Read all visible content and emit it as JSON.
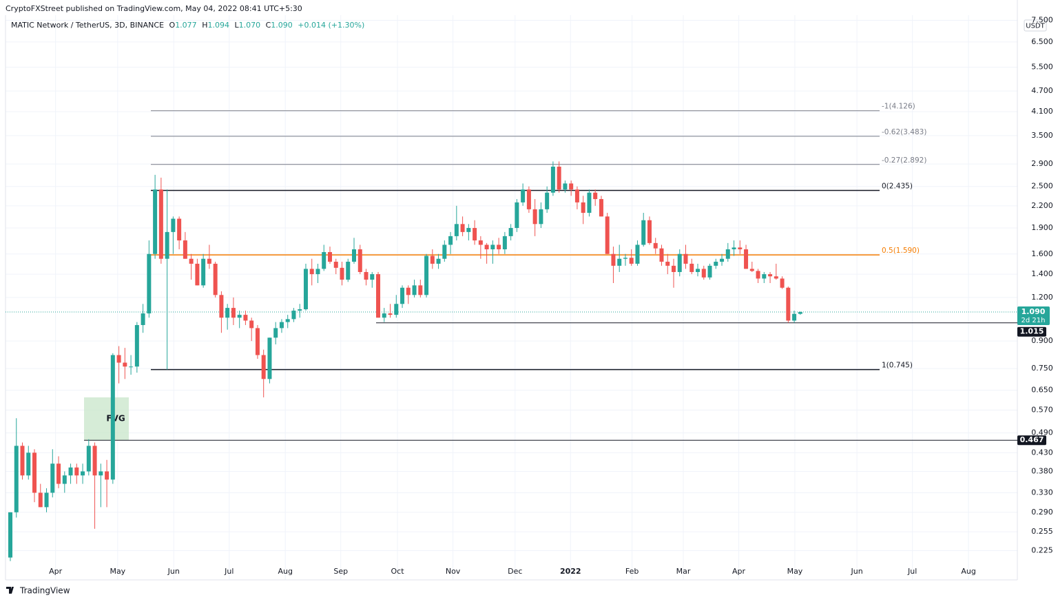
{
  "header": "CryptoFXStreet published on TradingView.com, May 04, 2022 08:41 UTC+5:30",
  "legend": {
    "symbol": "MATIC Network / TetherUS, 3D, BINANCE",
    "readout": [
      {
        "key": "O",
        "value": "1.077"
      },
      {
        "key": "H",
        "value": "1.094"
      },
      {
        "key": "L",
        "value": "1.070"
      },
      {
        "key": "C",
        "value": "1.090"
      }
    ],
    "change": "+0.014 (+1.30%)"
  },
  "footer": "TradingView",
  "chart_data": {
    "type": "candlestick",
    "log_scale": true,
    "grid": true,
    "unit": "USDT",
    "up_color": "#26a69a",
    "down_color": "#ef5350",
    "ylim": [
      0.205,
      7.76
    ],
    "yticks": [
      {
        "value": 7.5,
        "label": "7.500"
      },
      {
        "value": 6.5,
        "label": "6.500"
      },
      {
        "value": 5.5,
        "label": "5.500"
      },
      {
        "value": 4.7,
        "label": "4.700"
      },
      {
        "value": 4.1,
        "label": "4.100"
      },
      {
        "value": 3.5,
        "label": "3.500"
      },
      {
        "value": 2.9,
        "label": "2.900"
      },
      {
        "value": 2.5,
        "label": "2.500"
      },
      {
        "value": 2.2,
        "label": "2.200"
      },
      {
        "value": 1.9,
        "label": "1.900"
      },
      {
        "value": 1.6,
        "label": "1.600"
      },
      {
        "value": 1.4,
        "label": "1.400"
      },
      {
        "value": 1.2,
        "label": "1.200"
      },
      {
        "value": 0.9,
        "label": "0.900"
      },
      {
        "value": 0.75,
        "label": "0.750"
      },
      {
        "value": 0.65,
        "label": "0.650"
      },
      {
        "value": 0.57,
        "label": "0.570"
      },
      {
        "value": 0.49,
        "label": "0.490"
      },
      {
        "value": 0.43,
        "label": "0.430"
      },
      {
        "value": 0.38,
        "label": "0.380"
      },
      {
        "value": 0.33,
        "label": "0.330"
      },
      {
        "value": 0.29,
        "label": "0.290"
      },
      {
        "value": 0.255,
        "label": "0.255"
      },
      {
        "value": 0.225,
        "label": "0.225"
      }
    ],
    "xlim": [
      -0.8,
      167
    ],
    "xticks": [
      {
        "value": 7.5,
        "label": "Apr"
      },
      {
        "value": 17.8,
        "label": "May"
      },
      {
        "value": 27.1,
        "label": "Jun"
      },
      {
        "value": 36.3,
        "label": "Jul"
      },
      {
        "value": 45.6,
        "label": "Aug"
      },
      {
        "value": 54.8,
        "label": "Sep"
      },
      {
        "value": 64.2,
        "label": "Oct"
      },
      {
        "value": 73.4,
        "label": "Nov"
      },
      {
        "value": 83.7,
        "label": "Dec"
      },
      {
        "value": 92.9,
        "label": "2022"
      },
      {
        "value": 103.1,
        "label": "Feb"
      },
      {
        "value": 111.6,
        "label": "Mar"
      },
      {
        "value": 120.8,
        "label": "Apr"
      },
      {
        "value": 130.1,
        "label": "May"
      },
      {
        "value": 140.4,
        "label": "Jun"
      },
      {
        "value": 149.6,
        "label": "Jul"
      },
      {
        "value": 158.9,
        "label": "Aug"
      }
    ],
    "ohlc": [
      [
        0.215,
        0.29,
        0.21,
        0.29
      ],
      [
        0.29,
        0.54,
        0.28,
        0.45
      ],
      [
        0.45,
        0.46,
        0.36,
        0.37
      ],
      [
        0.37,
        0.45,
        0.36,
        0.43
      ],
      [
        0.43,
        0.44,
        0.31,
        0.33
      ],
      [
        0.33,
        0.35,
        0.3,
        0.3
      ],
      [
        0.3,
        0.34,
        0.29,
        0.33
      ],
      [
        0.33,
        0.44,
        0.32,
        0.4
      ],
      [
        0.4,
        0.42,
        0.34,
        0.35
      ],
      [
        0.35,
        0.38,
        0.33,
        0.37
      ],
      [
        0.37,
        0.4,
        0.35,
        0.39
      ],
      [
        0.39,
        0.4,
        0.35,
        0.37
      ],
      [
        0.37,
        0.4,
        0.35,
        0.38
      ],
      [
        0.38,
        0.47,
        0.37,
        0.45
      ],
      [
        0.45,
        0.46,
        0.26,
        0.37
      ],
      [
        0.37,
        0.4,
        0.3,
        0.38
      ],
      [
        0.38,
        0.41,
        0.3,
        0.36
      ],
      [
        0.36,
        0.83,
        0.35,
        0.82
      ],
      [
        0.82,
        0.87,
        0.68,
        0.78
      ],
      [
        0.78,
        0.86,
        0.7,
        0.76
      ],
      [
        0.76,
        0.82,
        0.72,
        0.76
      ],
      [
        0.76,
        1.02,
        0.73,
        1.0
      ],
      [
        1.0,
        1.15,
        0.95,
        1.08
      ],
      [
        1.08,
        1.75,
        1.05,
        1.6
      ],
      [
        1.6,
        2.7,
        1.55,
        2.45
      ],
      [
        2.45,
        2.65,
        1.5,
        1.55
      ],
      [
        1.55,
        2.45,
        0.745,
        1.85
      ],
      [
        1.85,
        2.05,
        1.6,
        2.02
      ],
      [
        2.02,
        2.05,
        1.65,
        1.75
      ],
      [
        1.75,
        1.85,
        1.55,
        1.55
      ],
      [
        1.55,
        1.6,
        1.35,
        1.5
      ],
      [
        1.5,
        1.55,
        1.3,
        1.3
      ],
      [
        1.3,
        1.6,
        1.28,
        1.55
      ],
      [
        1.55,
        1.7,
        1.45,
        1.5
      ],
      [
        1.5,
        1.52,
        1.2,
        1.22
      ],
      [
        1.22,
        1.25,
        0.95,
        1.05
      ],
      [
        1.05,
        1.15,
        0.97,
        1.12
      ],
      [
        1.12,
        1.2,
        1.0,
        1.05
      ],
      [
        1.05,
        1.1,
        0.98,
        1.07
      ],
      [
        1.07,
        1.1,
        1.0,
        1.03
      ],
      [
        1.03,
        1.05,
        0.9,
        0.98
      ],
      [
        0.98,
        1.0,
        0.8,
        0.82
      ],
      [
        0.82,
        0.85,
        0.62,
        0.7
      ],
      [
        0.7,
        0.92,
        0.68,
        0.92
      ],
      [
        0.92,
        1.02,
        0.88,
        0.98
      ],
      [
        0.98,
        1.04,
        0.95,
        1.02
      ],
      [
        1.02,
        1.07,
        0.98,
        1.04
      ],
      [
        1.04,
        1.12,
        1.02,
        1.1
      ],
      [
        1.1,
        1.15,
        1.05,
        1.11
      ],
      [
        1.11,
        1.5,
        1.1,
        1.45
      ],
      [
        1.45,
        1.55,
        1.3,
        1.4
      ],
      [
        1.4,
        1.5,
        1.32,
        1.45
      ],
      [
        1.45,
        1.7,
        1.43,
        1.62
      ],
      [
        1.62,
        1.68,
        1.5,
        1.52
      ],
      [
        1.52,
        1.55,
        1.4,
        1.46
      ],
      [
        1.46,
        1.52,
        1.3,
        1.35
      ],
      [
        1.35,
        1.55,
        1.33,
        1.52
      ],
      [
        1.52,
        1.78,
        1.5,
        1.65
      ],
      [
        1.65,
        1.7,
        1.4,
        1.42
      ],
      [
        1.42,
        1.45,
        1.3,
        1.35
      ],
      [
        1.35,
        1.42,
        1.28,
        1.4
      ],
      [
        1.4,
        1.42,
        1.05,
        1.05
      ],
      [
        1.05,
        1.12,
        1.02,
        1.08
      ],
      [
        1.08,
        1.15,
        1.05,
        1.07
      ],
      [
        1.07,
        1.22,
        1.05,
        1.15
      ],
      [
        1.15,
        1.3,
        1.12,
        1.28
      ],
      [
        1.28,
        1.3,
        1.15,
        1.22
      ],
      [
        1.22,
        1.35,
        1.2,
        1.3
      ],
      [
        1.3,
        1.35,
        1.2,
        1.22
      ],
      [
        1.22,
        1.6,
        1.2,
        1.58
      ],
      [
        1.58,
        1.65,
        1.45,
        1.5
      ],
      [
        1.5,
        1.6,
        1.45,
        1.55
      ],
      [
        1.55,
        1.75,
        1.52,
        1.7
      ],
      [
        1.7,
        1.85,
        1.6,
        1.8
      ],
      [
        1.8,
        2.2,
        1.75,
        1.95
      ],
      [
        1.95,
        2.05,
        1.8,
        1.85
      ],
      [
        1.85,
        1.95,
        1.75,
        1.9
      ],
      [
        1.9,
        2.0,
        1.7,
        1.75
      ],
      [
        1.75,
        1.8,
        1.55,
        1.7
      ],
      [
        1.7,
        1.72,
        1.5,
        1.65
      ],
      [
        1.65,
        1.75,
        1.5,
        1.7
      ],
      [
        1.7,
        1.78,
        1.6,
        1.65
      ],
      [
        1.65,
        1.85,
        1.6,
        1.8
      ],
      [
        1.8,
        1.95,
        1.75,
        1.9
      ],
      [
        1.9,
        2.3,
        1.85,
        2.25
      ],
      [
        2.25,
        2.55,
        2.2,
        2.45
      ],
      [
        2.45,
        2.5,
        2.1,
        2.15
      ],
      [
        2.15,
        2.3,
        1.8,
        1.95
      ],
      [
        1.95,
        2.25,
        1.9,
        2.15
      ],
      [
        2.15,
        2.5,
        2.1,
        2.4
      ],
      [
        2.4,
        2.95,
        2.35,
        2.85
      ],
      [
        2.85,
        2.95,
        2.4,
        2.45
      ],
      [
        2.45,
        2.6,
        2.4,
        2.55
      ],
      [
        2.55,
        2.6,
        2.35,
        2.45
      ],
      [
        2.45,
        2.5,
        2.15,
        2.25
      ],
      [
        2.25,
        2.35,
        1.95,
        2.1
      ],
      [
        2.1,
        2.45,
        2.05,
        2.4
      ],
      [
        2.4,
        2.45,
        2.2,
        2.3
      ],
      [
        2.3,
        2.35,
        2.05,
        2.05
      ],
      [
        2.05,
        2.1,
        1.6,
        1.6
      ],
      [
        1.6,
        1.68,
        1.32,
        1.48
      ],
      [
        1.48,
        1.7,
        1.42,
        1.55
      ],
      [
        1.55,
        1.6,
        1.48,
        1.56
      ],
      [
        1.56,
        1.65,
        1.48,
        1.5
      ],
      [
        1.5,
        1.75,
        1.48,
        1.7
      ],
      [
        1.7,
        2.1,
        1.68,
        2.0
      ],
      [
        2.0,
        2.05,
        1.7,
        1.72
      ],
      [
        1.72,
        1.78,
        1.6,
        1.66
      ],
      [
        1.66,
        1.7,
        1.48,
        1.52
      ],
      [
        1.52,
        1.6,
        1.4,
        1.48
      ],
      [
        1.48,
        1.55,
        1.28,
        1.42
      ],
      [
        1.42,
        1.65,
        1.38,
        1.6
      ],
      [
        1.6,
        1.7,
        1.45,
        1.5
      ],
      [
        1.5,
        1.55,
        1.4,
        1.42
      ],
      [
        1.42,
        1.5,
        1.38,
        1.45
      ],
      [
        1.45,
        1.48,
        1.35,
        1.37
      ],
      [
        1.37,
        1.5,
        1.35,
        1.48
      ],
      [
        1.48,
        1.55,
        1.45,
        1.52
      ],
      [
        1.52,
        1.6,
        1.48,
        1.55
      ],
      [
        1.55,
        1.72,
        1.52,
        1.65
      ],
      [
        1.65,
        1.75,
        1.58,
        1.67
      ],
      [
        1.67,
        1.75,
        1.6,
        1.65
      ],
      [
        1.65,
        1.7,
        1.45,
        1.45
      ],
      [
        1.45,
        1.52,
        1.42,
        1.43
      ],
      [
        1.43,
        1.45,
        1.32,
        1.36
      ],
      [
        1.36,
        1.42,
        1.32,
        1.4
      ],
      [
        1.4,
        1.42,
        1.32,
        1.38
      ],
      [
        1.38,
        1.5,
        1.35,
        1.36
      ],
      [
        1.36,
        1.38,
        1.27,
        1.28
      ],
      [
        1.28,
        1.29,
        1.015,
        1.03
      ],
      [
        1.03,
        1.1,
        1.015,
        1.077
      ],
      [
        1.077,
        1.094,
        1.07,
        1.09
      ]
    ],
    "fib_levels": [
      {
        "label": "-1(4.126)",
        "value": 4.126,
        "color": "#787b86"
      },
      {
        "label": "-0.62(3.483)",
        "value": 3.483,
        "color": "#787b86"
      },
      {
        "label": "-0.27(2.892)",
        "value": 2.892,
        "color": "#787b86"
      },
      {
        "label": "0(2.435)",
        "value": 2.435,
        "color": "#131722"
      },
      {
        "label": "0.5(1.590)",
        "value": 1.59,
        "color": "#f57c00"
      },
      {
        "label": "1(0.745)",
        "value": 0.745,
        "color": "#131722"
      }
    ],
    "levels": [
      {
        "value": 1.015,
        "label": "1.015"
      },
      {
        "value": 0.467,
        "label": "0.467"
      }
    ],
    "fvg": {
      "label": "FVG",
      "low": 0.467,
      "high": 0.62
    },
    "last_price": {
      "value": 1.09,
      "label": "1.090",
      "countdown": "2d 21h"
    }
  }
}
